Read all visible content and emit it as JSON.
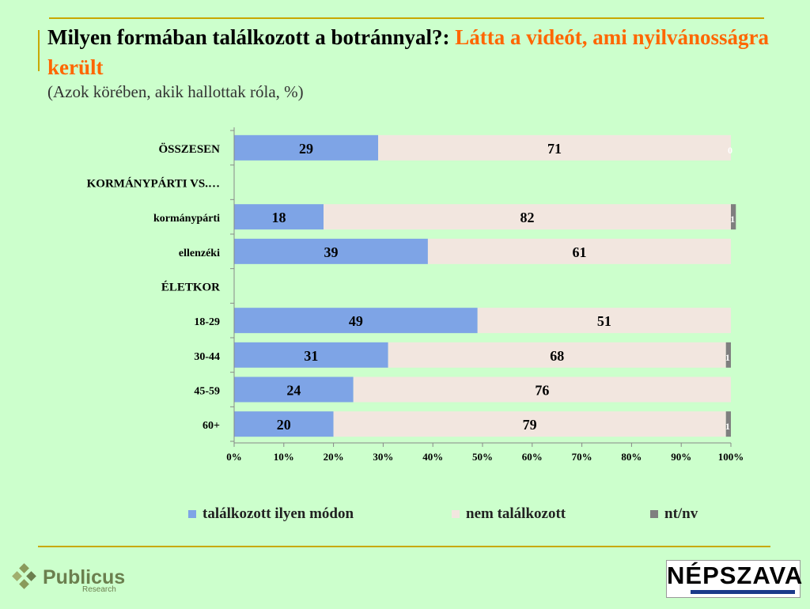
{
  "title": {
    "main": "Milyen formában találkozott a botránnyal?:",
    "highlight": "Látta a videót, ami nyilvánosságra került",
    "subtitle": "(Azok körében, akik hallottak róla, %)"
  },
  "chart_data": {
    "type": "bar",
    "orientation": "horizontal",
    "stacked": "percent",
    "categories": [
      "ÖSSZESEN",
      "KORMÁNYPÁRTI VS.…",
      "kormánypárti",
      "ellenzéki",
      "ÉLETKOR",
      "18-29",
      "30-44",
      "45-59",
      "60+"
    ],
    "series": [
      {
        "name": "találkozott ilyen módon",
        "color": "#7ea4e6",
        "values": [
          29,
          null,
          18,
          39,
          null,
          49,
          31,
          24,
          20
        ]
      },
      {
        "name": "nem találkozott",
        "color": "#f2e6df",
        "values": [
          71,
          null,
          82,
          61,
          null,
          51,
          68,
          76,
          79
        ]
      },
      {
        "name": "nt/nv",
        "color": "#7f7f7f",
        "values": [
          0,
          null,
          1,
          0,
          null,
          0,
          1,
          0,
          1
        ]
      }
    ],
    "data_labels": [
      [
        "29",
        "",
        "18",
        "39",
        "",
        "49",
        "31",
        "24",
        "20"
      ],
      [
        "71",
        "",
        "82",
        "61",
        "",
        "51",
        "68",
        "76",
        "79"
      ],
      [
        "0",
        "",
        "1",
        "",
        "",
        "",
        "1",
        "",
        "1"
      ]
    ],
    "xlim": [
      0,
      100
    ],
    "xticks": [
      "0%",
      "10%",
      "20%",
      "30%",
      "40%",
      "50%",
      "60%",
      "70%",
      "80%",
      "90%",
      "100%"
    ],
    "grid": false,
    "legend_position": "bottom"
  },
  "logos": {
    "left_text": "Publicus",
    "left_sub": "Research",
    "right_text": "NÉPSZAVA"
  }
}
